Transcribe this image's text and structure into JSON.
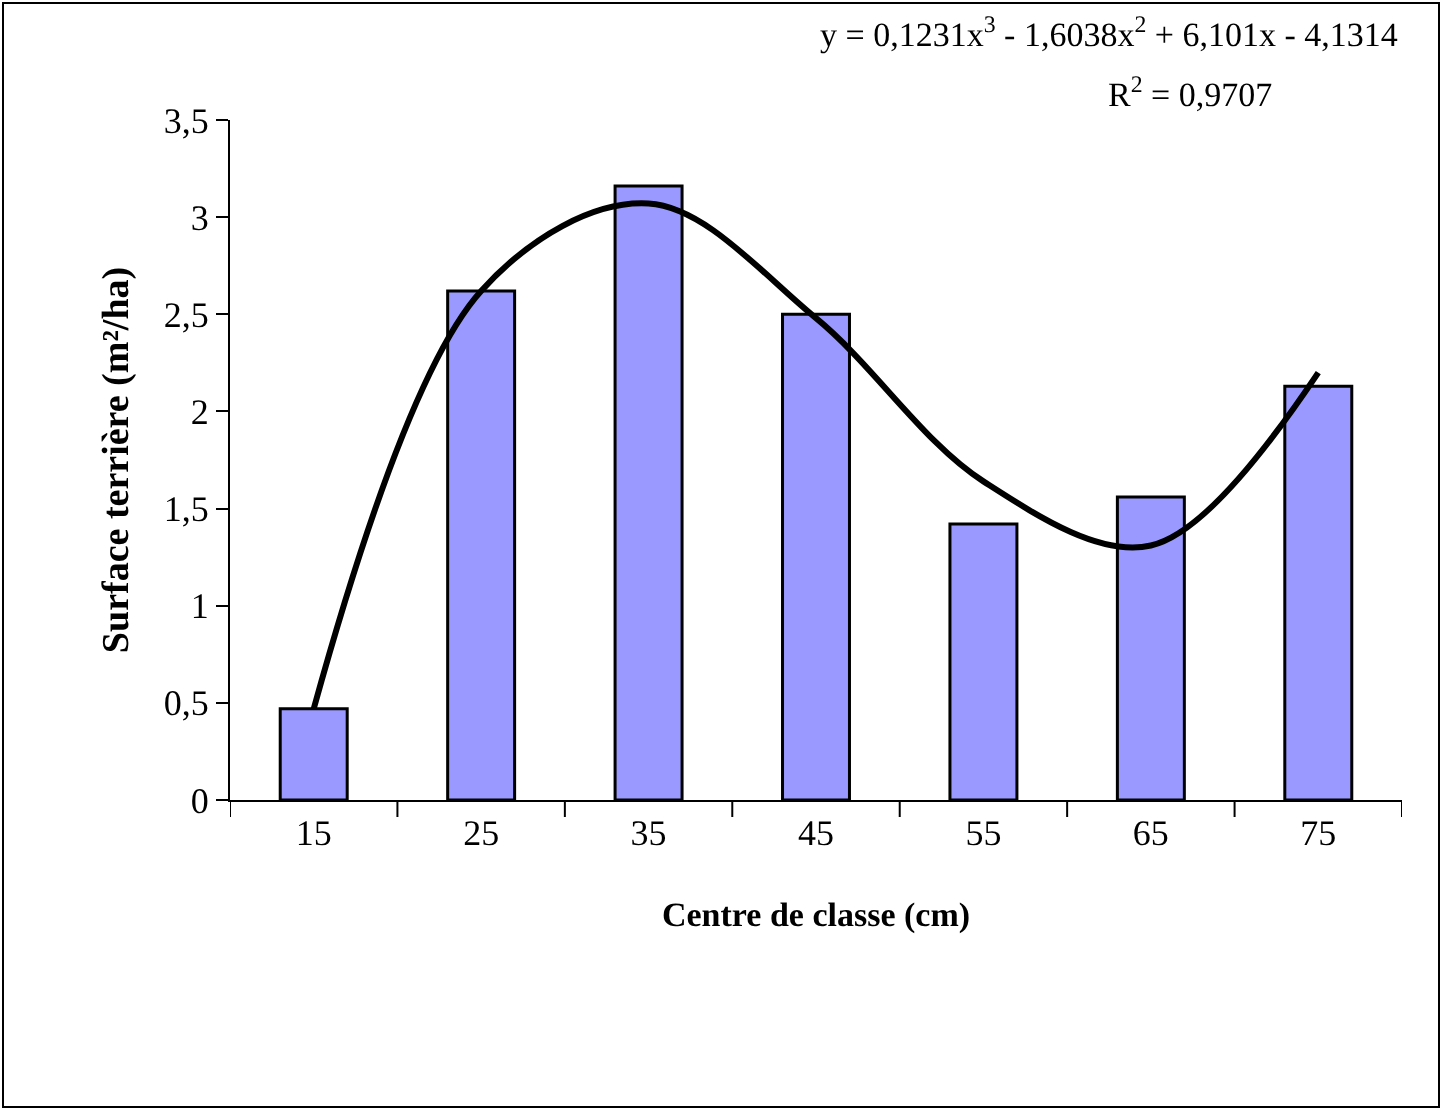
{
  "chart_data": {
    "type": "bar",
    "xlabel": "Centre de classe (cm)",
    "ylabel": "Surface terrière (m²/ha)",
    "categories": [
      "15",
      "25",
      "35",
      "45",
      "55",
      "65",
      "75"
    ],
    "series": [
      {
        "color": "#9999ff",
        "values": [
          0.47,
          2.62,
          3.16,
          2.5,
          1.42,
          1.56,
          2.13
        ]
      },
      {
        "type": "line",
        "color": "#000000",
        "x": [
          "15",
          "25",
          "35",
          "45",
          "55",
          "65",
          "75"
        ],
        "values": [
          0.47,
          2.62,
          3.07,
          2.48,
          1.64,
          1.31,
          2.2
        ]
      }
    ],
    "ylim": [
      0,
      3.5
    ],
    "yticks": [
      {
        "value": 0,
        "label": "0"
      },
      {
        "value": 0.5,
        "label": "0,5"
      },
      {
        "value": 1,
        "label": "1"
      },
      {
        "value": 1.5,
        "label": "1,5"
      },
      {
        "value": 2,
        "label": "2"
      },
      {
        "value": 2.5,
        "label": "2,5"
      },
      {
        "value": 3,
        "label": "3"
      },
      {
        "value": 3.5,
        "label": "3,5"
      }
    ],
    "grid": false,
    "legend": false,
    "marker": "none",
    "line_style": "solid",
    "annotations": [
      "y = 0,1231x$^{3}$ - 1,6038x$^{2}$ + 6,101x - 4,1314",
      "R$^{2}$ = 0,9707"
    ]
  }
}
